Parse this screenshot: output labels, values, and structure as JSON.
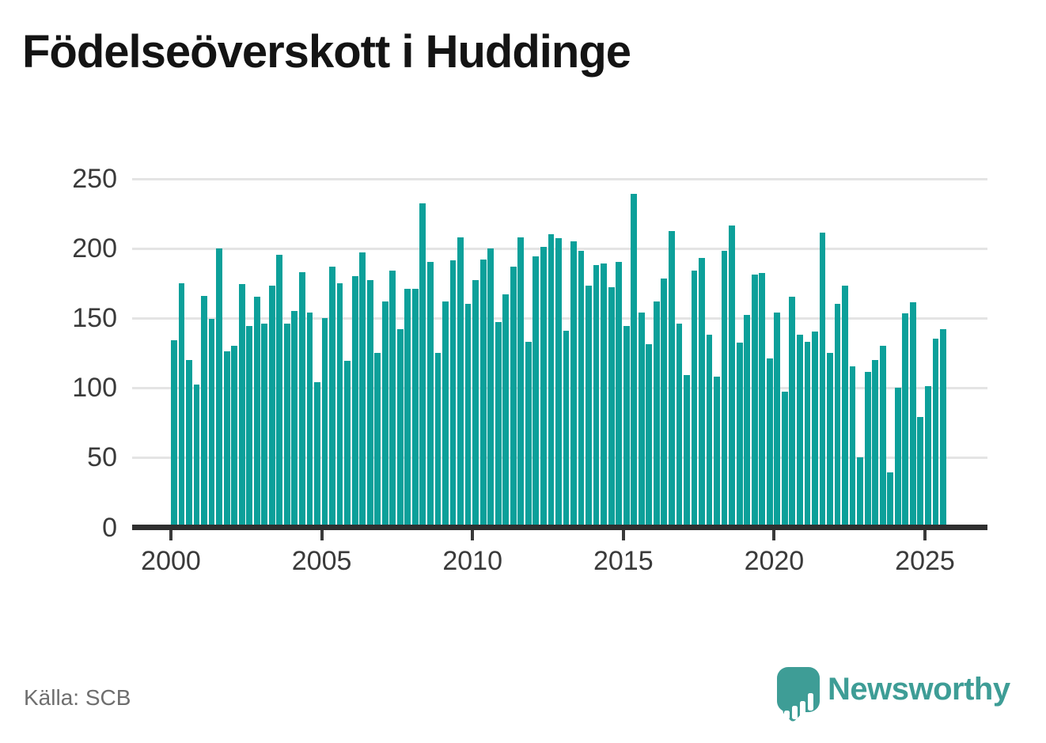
{
  "title": "Födelseöverskott i Huddinge",
  "source": "Källa: SCB",
  "branding": {
    "name": "Newsworthy"
  },
  "colors": {
    "bar": "#0ca09a",
    "axis": "#2f2f2f",
    "grid": "#e4e4e4",
    "text": "#3a3a3a",
    "muted": "#6e6e6e",
    "brand": "#3e9d96"
  },
  "chart_data": {
    "type": "bar",
    "title": "Födelseöverskott i Huddinge",
    "x_start": "2000-Q1",
    "frequency": "quarterly",
    "values": [
      134,
      175,
      120,
      102,
      166,
      149,
      200,
      126,
      130,
      174,
      144,
      165,
      146,
      173,
      195,
      146,
      155,
      183,
      154,
      104,
      150,
      187,
      175,
      119,
      180,
      197,
      177,
      125,
      162,
      184,
      142,
      171,
      171,
      232,
      190,
      125,
      162,
      191,
      208,
      160,
      177,
      192,
      200,
      147,
      167,
      187,
      208,
      133,
      194,
      201,
      210,
      207,
      141,
      205,
      198,
      173,
      188,
      189,
      172,
      190,
      144,
      239,
      154,
      131,
      162,
      178,
      212,
      146,
      109,
      184,
      193,
      138,
      108,
      198,
      216,
      132,
      152,
      181,
      182,
      121,
      154,
      97,
      165,
      138,
      133,
      140,
      211,
      125,
      160,
      173,
      115,
      50,
      111,
      120,
      130,
      39,
      100,
      153,
      161,
      79,
      101,
      135,
      142
    ],
    "x_tick_labels": [
      "2000",
      "2005",
      "2010",
      "2015",
      "2020",
      "2025"
    ],
    "y_ticks": [
      0,
      50,
      100,
      150,
      200,
      250
    ],
    "ylim": [
      0,
      250
    ],
    "grid": "horizontal",
    "legend": "none",
    "bar_color": "#0ca09a"
  }
}
